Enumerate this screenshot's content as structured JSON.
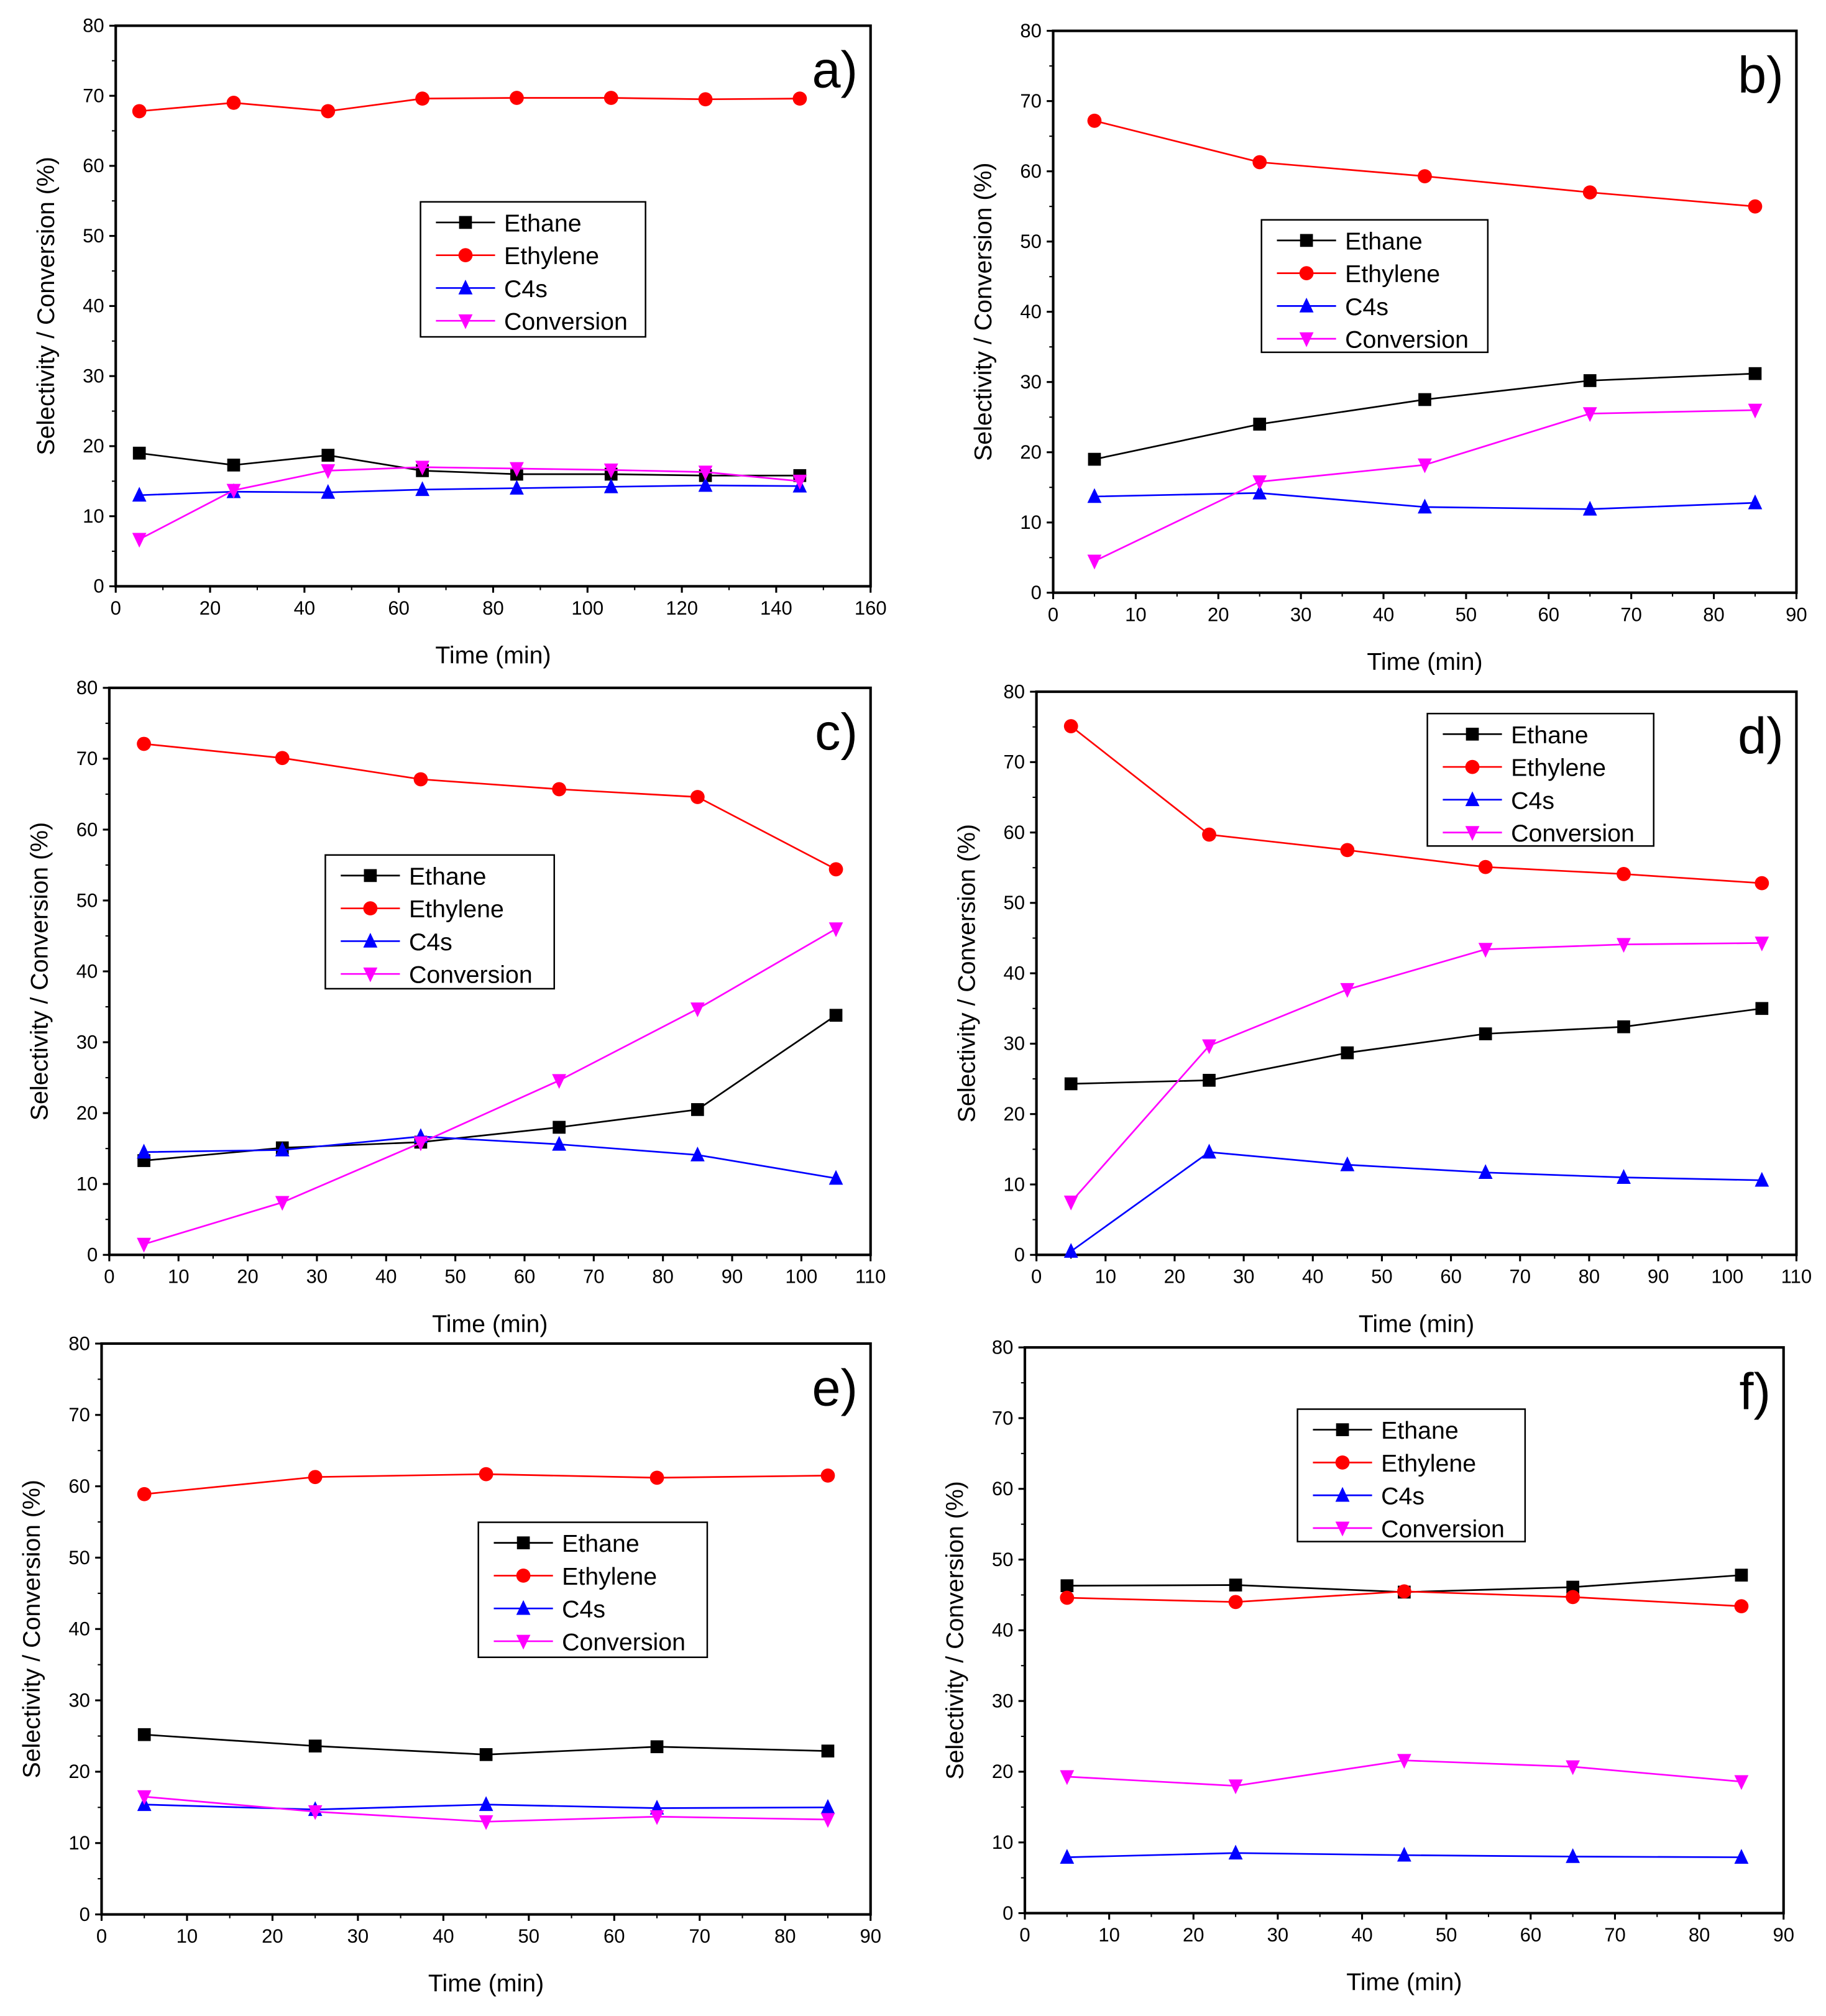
{
  "chart_data": [
    {
      "type": "line",
      "panel_label": "a)",
      "xlabel": "Time (min)",
      "ylabel": "Selectivity / Conversion (%)",
      "xlim": [
        0,
        160
      ],
      "xticks": [
        0,
        20,
        40,
        60,
        80,
        100,
        120,
        140,
        160
      ],
      "ylim": [
        0,
        80
      ],
      "yticks": [
        0,
        10,
        20,
        30,
        40,
        50,
        60,
        70,
        80
      ],
      "legend_position": "center",
      "x": [
        5,
        25,
        45,
        65,
        85,
        105,
        125,
        145
      ],
      "series": [
        {
          "name": "Ethane",
          "color": "#000000",
          "marker": "square",
          "values": [
            19,
            17.3,
            18.7,
            16.5,
            16,
            16,
            15.8,
            15.8
          ]
        },
        {
          "name": "Ethylene",
          "color": "#ff0000",
          "marker": "circle",
          "values": [
            67.8,
            69,
            67.8,
            69.6,
            69.7,
            69.7,
            69.5,
            69.6
          ]
        },
        {
          "name": "C4s",
          "color": "#0000ff",
          "marker": "triangle-up",
          "values": [
            13,
            13.5,
            13.4,
            13.8,
            14,
            14.2,
            14.4,
            14.3
          ]
        },
        {
          "name": "Conversion",
          "color": "#ff00ff",
          "marker": "triangle-down",
          "values": [
            6.7,
            13.7,
            16.5,
            17,
            16.8,
            16.6,
            16.3,
            15
          ]
        }
      ]
    },
    {
      "type": "line",
      "panel_label": "b)",
      "xlabel": "Time (min)",
      "ylabel": "Selectivity / Conversion (%)",
      "xlim": [
        0,
        90
      ],
      "xticks": [
        0,
        10,
        20,
        30,
        40,
        50,
        60,
        70,
        80,
        90
      ],
      "ylim": [
        0,
        80
      ],
      "yticks": [
        0,
        10,
        20,
        30,
        40,
        50,
        60,
        70,
        80
      ],
      "legend_position": "center-left",
      "x": [
        5,
        25,
        45,
        65,
        85
      ],
      "series": [
        {
          "name": "Ethane",
          "color": "#000000",
          "marker": "square",
          "values": [
            19,
            24,
            27.5,
            30.2,
            31.2
          ]
        },
        {
          "name": "Ethylene",
          "color": "#ff0000",
          "marker": "circle",
          "values": [
            67.2,
            61.3,
            59.3,
            57,
            55
          ]
        },
        {
          "name": "C4s",
          "color": "#0000ff",
          "marker": "triangle-up",
          "values": [
            13.7,
            14.2,
            12.2,
            11.9,
            12.8
          ]
        },
        {
          "name": "Conversion",
          "color": "#ff00ff",
          "marker": "triangle-down",
          "values": [
            4.5,
            15.8,
            18.2,
            25.5,
            26
          ]
        }
      ]
    },
    {
      "type": "line",
      "panel_label": "c)",
      "xlabel": "Time (min)",
      "ylabel": "Selectivity / Conversion (%)",
      "xlim": [
        0,
        110
      ],
      "xticks": [
        0,
        10,
        20,
        30,
        40,
        50,
        60,
        70,
        80,
        90,
        100,
        110
      ],
      "ylim": [
        0,
        80
      ],
      "yticks": [
        0,
        10,
        20,
        30,
        40,
        50,
        60,
        70,
        80
      ],
      "legend_position": "center-left",
      "x": [
        5,
        25,
        45,
        65,
        85,
        105
      ],
      "series": [
        {
          "name": "Ethane",
          "color": "#000000",
          "marker": "square",
          "values": [
            13.3,
            15.1,
            15.9,
            18,
            20.5,
            33.8
          ]
        },
        {
          "name": "Ethylene",
          "color": "#ff0000",
          "marker": "circle",
          "values": [
            72.1,
            70.1,
            67.1,
            65.7,
            64.6,
            54.4
          ]
        },
        {
          "name": "C4s",
          "color": "#0000ff",
          "marker": "triangle-up",
          "values": [
            14.5,
            14.8,
            16.7,
            15.6,
            14.1,
            10.8
          ]
        },
        {
          "name": "Conversion",
          "color": "#ff00ff",
          "marker": "triangle-down",
          "values": [
            1.5,
            7.4,
            15.8,
            24.6,
            34.7,
            46
          ]
        }
      ]
    },
    {
      "type": "line",
      "panel_label": "d)",
      "xlabel": "Time (min)",
      "ylabel": "Selectivity / Conversion (%)",
      "xlim": [
        0,
        110
      ],
      "xticks": [
        0,
        10,
        20,
        30,
        40,
        50,
        60,
        70,
        80,
        90,
        100,
        110
      ],
      "ylim": [
        0,
        80
      ],
      "yticks": [
        0,
        10,
        20,
        30,
        40,
        50,
        60,
        70,
        80
      ],
      "legend_position": "top-center",
      "x": [
        5,
        25,
        45,
        65,
        85,
        105
      ],
      "series": [
        {
          "name": "Ethane",
          "color": "#000000",
          "marker": "square",
          "values": [
            24.3,
            24.8,
            28.7,
            31.4,
            32.4,
            35
          ]
        },
        {
          "name": "Ethylene",
          "color": "#ff0000",
          "marker": "circle",
          "values": [
            75.1,
            59.7,
            57.5,
            55.1,
            54.1,
            52.8
          ]
        },
        {
          "name": "C4s",
          "color": "#0000ff",
          "marker": "triangle-up",
          "values": [
            0.5,
            14.6,
            12.8,
            11.7,
            11,
            10.6
          ]
        },
        {
          "name": "Conversion",
          "color": "#ff00ff",
          "marker": "triangle-down",
          "values": [
            7.5,
            29.7,
            37.7,
            43.4,
            44.1,
            44.3
          ]
        }
      ]
    },
    {
      "type": "line",
      "panel_label": "e)",
      "xlabel": "Time (min)",
      "ylabel": "Selectivity / Conversion (%)",
      "xlim": [
        0,
        90
      ],
      "xticks": [
        0,
        10,
        20,
        30,
        40,
        50,
        60,
        70,
        80,
        90
      ],
      "ylim": [
        0,
        80
      ],
      "yticks": [
        0,
        10,
        20,
        30,
        40,
        50,
        60,
        70,
        80
      ],
      "legend_position": "center",
      "x": [
        5,
        25,
        45,
        65,
        85
      ],
      "series": [
        {
          "name": "Ethane",
          "color": "#000000",
          "marker": "square",
          "values": [
            25.2,
            23.6,
            22.4,
            23.5,
            22.9
          ]
        },
        {
          "name": "Ethylene",
          "color": "#ff0000",
          "marker": "circle",
          "values": [
            58.9,
            61.3,
            61.7,
            61.2,
            61.5
          ]
        },
        {
          "name": "C4s",
          "color": "#0000ff",
          "marker": "triangle-up",
          "values": [
            15.4,
            14.7,
            15.4,
            14.9,
            15
          ]
        },
        {
          "name": "Conversion",
          "color": "#ff00ff",
          "marker": "triangle-down",
          "values": [
            16.5,
            14.4,
            13,
            13.7,
            13.3
          ]
        }
      ]
    },
    {
      "type": "line",
      "panel_label": "f)",
      "xlabel": "Time (min)",
      "ylabel": "Selectivity / Conversion (%)",
      "xlim": [
        0,
        90
      ],
      "xticks": [
        0,
        10,
        20,
        30,
        40,
        50,
        60,
        70,
        80,
        90
      ],
      "ylim": [
        0,
        80
      ],
      "yticks": [
        0,
        10,
        20,
        30,
        40,
        50,
        60,
        70,
        80
      ],
      "legend_position": "top-center",
      "x": [
        5,
        25,
        45,
        65,
        85
      ],
      "series": [
        {
          "name": "Ethane",
          "color": "#000000",
          "marker": "square",
          "values": [
            46.3,
            46.4,
            45.4,
            46.1,
            47.8
          ]
        },
        {
          "name": "Ethylene",
          "color": "#ff0000",
          "marker": "circle",
          "values": [
            44.6,
            44,
            45.5,
            44.7,
            43.4
          ]
        },
        {
          "name": "C4s",
          "color": "#0000ff",
          "marker": "triangle-up",
          "values": [
            7.9,
            8.5,
            8.2,
            8,
            7.9
          ]
        },
        {
          "name": "Conversion",
          "color": "#ff00ff",
          "marker": "triangle-down",
          "values": [
            19.3,
            18,
            21.6,
            20.7,
            18.6
          ]
        }
      ]
    }
  ]
}
